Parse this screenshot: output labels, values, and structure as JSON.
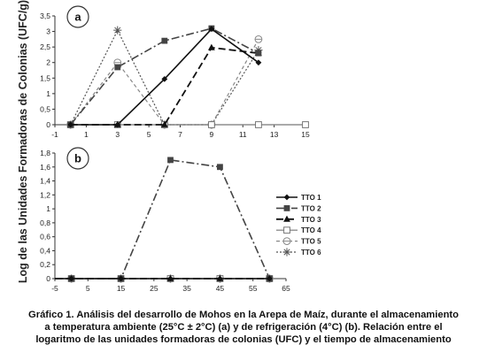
{
  "ylabel": "Log de las Unidades Formadoras de Colonias (UFC/g)",
  "legend": {
    "placement": "right",
    "entries": [
      "TTO 1",
      "TTO 2",
      "TTO 3",
      "TTO 4",
      "TTO 5",
      "TTO 6"
    ]
  },
  "caption": {
    "lines": [
      "Gráfico 1. Análisis del desarrollo de Mohos en la Arepa de Maíz, durante el almacenamiento",
      "a temperatura ambiente (25°C ± 2°C) (a) y de refrigeración (4°C) (b). Relación entre el",
      "logaritmo de las unidades formadoras de colonias (UFC) y el tiempo de almacenamiento"
    ]
  },
  "chart_data": [
    {
      "type": "line",
      "panel_label": "a",
      "x_ticks": [
        "-1",
        "1",
        "3",
        "5",
        "7",
        "9",
        "11",
        "13",
        "15"
      ],
      "y_ticks": [
        "0",
        "0,5",
        "1",
        "1,5",
        "2",
        "2,5",
        "3",
        "3,5"
      ],
      "xlim": [
        -1,
        15
      ],
      "ylim": [
        0,
        3.5
      ],
      "series": [
        {
          "name": "TTO 1",
          "x": [
            0,
            3,
            6,
            9,
            12
          ],
          "y": [
            0,
            0,
            1.47,
            3.08,
            2.0
          ]
        },
        {
          "name": "TTO 2",
          "x": [
            0,
            3,
            6,
            9,
            12
          ],
          "y": [
            0,
            1.85,
            2.7,
            3.1,
            2.3
          ]
        },
        {
          "name": "TTO 3",
          "x": [
            0,
            3,
            6,
            9,
            12
          ],
          "y": [
            0,
            0,
            0,
            2.48,
            2.3
          ]
        },
        {
          "name": "TTO 4",
          "x": [
            0,
            3,
            6,
            9,
            12,
            15
          ],
          "y": [
            0,
            0,
            0,
            0,
            0,
            0
          ]
        },
        {
          "name": "TTO 5",
          "x": [
            0,
            3,
            6,
            9,
            12
          ],
          "y": [
            0,
            2.0,
            0,
            0,
            2.75
          ]
        },
        {
          "name": "TTO 6",
          "x": [
            0,
            3,
            6,
            9,
            12
          ],
          "y": [
            0,
            3.04,
            0,
            0,
            2.4
          ]
        }
      ]
    },
    {
      "type": "line",
      "panel_label": "b",
      "x_ticks": [
        "-5",
        "5",
        "15",
        "25",
        "35",
        "45",
        "55",
        "65"
      ],
      "y_ticks": [
        "0",
        "0,2",
        "0,4",
        "0,6",
        "0,8",
        "1",
        "1,2",
        "1,4",
        "1,6",
        "1,8"
      ],
      "xlim": [
        -5,
        65
      ],
      "ylim": [
        0,
        1.8
      ],
      "series": [
        {
          "name": "TTO 1",
          "x": [
            -5,
            0,
            15,
            30,
            45,
            60
          ],
          "y": [
            0,
            0,
            0,
            0,
            0,
            0
          ]
        },
        {
          "name": "TTO 2",
          "x": [
            -5,
            0,
            15,
            30,
            45,
            60
          ],
          "y": [
            0,
            0,
            0,
            1.7,
            1.6,
            0
          ]
        },
        {
          "name": "TTO 3",
          "x": [
            -5,
            0,
            15,
            30,
            45,
            60
          ],
          "y": [
            0,
            0,
            0,
            0,
            0,
            0
          ]
        },
        {
          "name": "TTO 4",
          "x": [
            -5,
            0,
            15,
            30,
            45,
            60
          ],
          "y": [
            0,
            0,
            0,
            0,
            0,
            0
          ]
        },
        {
          "name": "TTO 5",
          "x": [
            -5,
            0,
            15,
            30,
            45,
            60
          ],
          "y": [
            0,
            0,
            0,
            0,
            0,
            0
          ]
        },
        {
          "name": "TTO 6",
          "x": [
            -5,
            0,
            15,
            30,
            45,
            60
          ],
          "y": [
            0,
            0,
            0,
            0,
            0,
            0
          ]
        }
      ]
    }
  ]
}
